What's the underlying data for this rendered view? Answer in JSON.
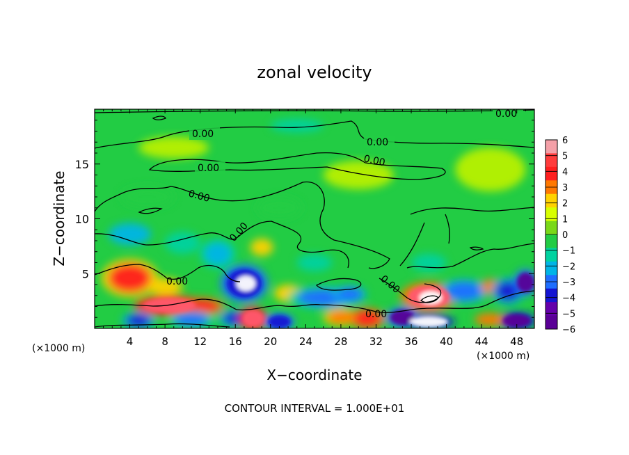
{
  "chart_data": {
    "type": "heatmap",
    "title": "zonal velocity",
    "xlabel": "X−coordinate",
    "ylabel": "Z−coordinate",
    "x_unit_left": "(×1000 m)",
    "x_unit_right": "(×1000 m)",
    "footer": "CONTOUR INTERVAL = 1.000E+01",
    "xlim": [
      0,
      50
    ],
    "ylim": [
      0,
      20
    ],
    "x_ticks": [
      "4",
      "8",
      "12",
      "16",
      "20",
      "24",
      "28",
      "32",
      "36",
      "40",
      "44",
      "48"
    ],
    "x_tick_values": [
      4,
      8,
      12,
      16,
      20,
      24,
      28,
      32,
      36,
      40,
      44,
      48
    ],
    "y_ticks": [
      "5",
      "10",
      "15"
    ],
    "y_tick_values": [
      5,
      10,
      15
    ],
    "colorbar": {
      "labels": [
        "6",
        "5",
        "4",
        "3",
        "2",
        "1",
        "0",
        "−1",
        "−2",
        "−3",
        "−4",
        "−5",
        "−6"
      ],
      "colors": [
        "#f4a0a8",
        "#ff3c3c",
        "#ff1e1e",
        "#ff7800",
        "#ffd200",
        "#d8ff00",
        "#7ad818",
        "#22cc44",
        "#00d2a0",
        "#00b4e6",
        "#1e6eff",
        "#1414d2",
        "#6400aa",
        "#5a0096"
      ]
    },
    "contour_labels": [
      "0.00",
      "0.00",
      "0.00",
      "0.00",
      "0.00",
      "0.00",
      "0.00",
      "0.00",
      "0.00",
      "0.00"
    ],
    "blobs": [
      {
        "x": 4,
        "z": 4.6,
        "rx": 2.4,
        "rz": 1.3,
        "v": 3.6
      },
      {
        "x": 8.5,
        "z": 2.1,
        "rx": 3.0,
        "rz": 0.7,
        "v": 5.2
      },
      {
        "x": 12,
        "z": 2.0,
        "rx": 2.0,
        "rz": 0.6,
        "v": 4.5
      },
      {
        "x": 8,
        "z": 3.8,
        "rx": 2.0,
        "rz": 0.8,
        "v": 2.5
      },
      {
        "x": 17,
        "z": 4.1,
        "rx": 2.0,
        "rz": 1.3,
        "v": -5.4
      },
      {
        "x": 17.2,
        "z": 4.1,
        "rx": 1.1,
        "rz": 0.7,
        "v": -6.5
      },
      {
        "x": 16,
        "z": 0.9,
        "rx": 1.4,
        "rz": 0.6,
        "v": -4.5
      },
      {
        "x": 18,
        "z": 0.9,
        "rx": 1.2,
        "rz": 0.8,
        "v": 5.5
      },
      {
        "x": 11,
        "z": 0.8,
        "rx": 2.0,
        "rz": 0.6,
        "v": -3.5
      },
      {
        "x": 5,
        "z": 0.7,
        "rx": 1.4,
        "rz": 0.6,
        "v": -4.8
      },
      {
        "x": 21,
        "z": 0.6,
        "rx": 1.3,
        "rz": 0.6,
        "v": -5.2
      },
      {
        "x": 22,
        "z": 3.2,
        "rx": 1.6,
        "rz": 0.8,
        "v": 2.5
      },
      {
        "x": 26,
        "z": 2.8,
        "rx": 3.0,
        "rz": 0.8,
        "v": -3.5
      },
      {
        "x": 29,
        "z": 3.1,
        "rx": 1.4,
        "rz": 0.6,
        "v": -4.2
      },
      {
        "x": 28,
        "z": 1.0,
        "rx": 1.5,
        "rz": 0.6,
        "v": 3.2
      },
      {
        "x": 31,
        "z": 0.9,
        "rx": 1.5,
        "rz": 0.7,
        "v": 4.2
      },
      {
        "x": 35,
        "z": 1.0,
        "rx": 1.4,
        "rz": 0.7,
        "v": -5.8
      },
      {
        "x": 38,
        "z": 2.9,
        "rx": 2.4,
        "rz": 1.0,
        "v": 5.0
      },
      {
        "x": 38.2,
        "z": 2.8,
        "rx": 1.3,
        "rz": 0.6,
        "v": 6.5
      },
      {
        "x": 38,
        "z": 0.6,
        "rx": 2.2,
        "rz": 0.5,
        "v": -6.3
      },
      {
        "x": 42,
        "z": 3.4,
        "rx": 2.0,
        "rz": 0.8,
        "v": -4.0
      },
      {
        "x": 45,
        "z": 3.8,
        "rx": 1.0,
        "rz": 0.7,
        "v": 2.8
      },
      {
        "x": 47,
        "z": 3.4,
        "rx": 1.4,
        "rz": 0.9,
        "v": -4.8
      },
      {
        "x": 49,
        "z": 4.2,
        "rx": 1.0,
        "rz": 0.9,
        "v": -5.5
      },
      {
        "x": 48,
        "z": 0.7,
        "rx": 1.6,
        "rz": 0.6,
        "v": -6.0
      },
      {
        "x": 45,
        "z": 0.8,
        "rx": 1.8,
        "rz": 0.6,
        "v": 2.6
      },
      {
        "x": 4,
        "z": 8.6,
        "rx": 2.4,
        "rz": 1.0,
        "v": -2.8
      },
      {
        "x": 10,
        "z": 7.8,
        "rx": 2.0,
        "rz": 1.0,
        "v": -2.2
      },
      {
        "x": 14,
        "z": 6.8,
        "rx": 1.5,
        "rz": 1.0,
        "v": -3.2
      },
      {
        "x": 19,
        "z": 7.4,
        "rx": 1.3,
        "rz": 0.8,
        "v": 2.3
      },
      {
        "x": 38,
        "z": 6.0,
        "rx": 2.0,
        "rz": 0.8,
        "v": -2.0
      },
      {
        "x": 25,
        "z": 6.0,
        "rx": 2.0,
        "rz": 0.8,
        "v": -1.8
      },
      {
        "x": 23,
        "z": 18.5,
        "rx": 3.0,
        "rz": 0.6,
        "v": -2.2
      },
      {
        "x": 6,
        "z": 12.0,
        "rx": 3.0,
        "rz": 1.0,
        "v": -1.2
      },
      {
        "x": 21,
        "z": 11.0,
        "rx": 2.5,
        "rz": 1.0,
        "v": -1.3
      },
      {
        "x": 45,
        "z": 14.5,
        "rx": 4.0,
        "rz": 2.0,
        "v": 0.9
      },
      {
        "x": 30,
        "z": 14.0,
        "rx": 4.0,
        "rz": 1.3,
        "v": 0.7
      },
      {
        "x": 9,
        "z": 16.5,
        "rx": 4.0,
        "rz": 1.0,
        "v": 0.8
      }
    ]
  }
}
